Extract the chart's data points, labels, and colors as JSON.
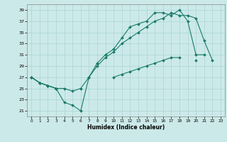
{
  "title": "",
  "xlabel": "Humidex (Indice chaleur)",
  "bg_color": "#cce9e9",
  "line_color": "#1a7a6a",
  "grid_color": "#aad4d4",
  "xlim": [
    -0.5,
    23.5
  ],
  "ylim": [
    20.0,
    40.0
  ],
  "yticks": [
    21,
    23,
    25,
    27,
    29,
    31,
    33,
    35,
    37,
    39
  ],
  "xticks": [
    0,
    1,
    2,
    3,
    4,
    5,
    6,
    7,
    8,
    9,
    10,
    11,
    12,
    13,
    14,
    15,
    16,
    17,
    18,
    19,
    20,
    21,
    22,
    23
  ],
  "line1_y": [
    27,
    26,
    25.5,
    25,
    22.5,
    22,
    21,
    27,
    29.5,
    31,
    32,
    34,
    36,
    36.5,
    37,
    38.5,
    38.5,
    38,
    39,
    37,
    31,
    31,
    null,
    null
  ],
  "line2_y": [
    27,
    26,
    25.5,
    25,
    25,
    24.5,
    25,
    27,
    29,
    30.5,
    31.5,
    33,
    34,
    35,
    36,
    37,
    37.5,
    38.5,
    38,
    38,
    37.5,
    33.5,
    30,
    null
  ],
  "line3_y": [
    27,
    26,
    25.5,
    25,
    null,
    null,
    null,
    null,
    null,
    null,
    27,
    27.5,
    28,
    28.5,
    29,
    29.5,
    30,
    30.5,
    30.5,
    null,
    30,
    null,
    null,
    null
  ]
}
